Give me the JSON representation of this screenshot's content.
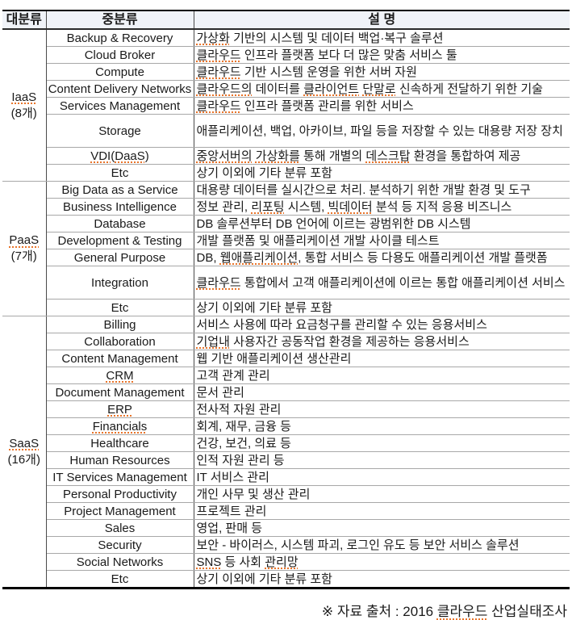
{
  "table": {
    "headers": [
      "대분류",
      "중분류",
      "설 명"
    ],
    "groups": [
      {
        "category": "IaaS",
        "count": "(8개)",
        "category_marks": [
          "IaaS"
        ],
        "rows": [
          {
            "name": "Backup & Recovery",
            "desc": "가상화 기반의 시스템 및 데이터 백업·복구 솔루션",
            "desc_marks": [
              "가상화"
            ]
          },
          {
            "name": "Cloud Broker",
            "desc": "클라우드 인프라 플랫폼 보다 더 많은 맞춤 서비스 툴",
            "desc_marks": [
              "클라우드"
            ]
          },
          {
            "name": "Compute",
            "desc": "클라우드 기반 시스템 운영을 위한 서버 자원",
            "desc_marks": [
              "클라우드"
            ]
          },
          {
            "name": "Content Delivery Networks",
            "desc": "클라우드의 데이터를 클라이언트 단말로 신속하게 전달하기 위한 기술",
            "desc_marks": [
              "클라우드의",
              "클라이언트",
              "단말로"
            ]
          },
          {
            "name": "Services Management",
            "desc": "클라우드 인프라 플랫폼 관리를 위한 서비스",
            "desc_marks": [
              "클라우드"
            ]
          },
          {
            "name": "Storage",
            "desc": "애플리케이션, 백업, 아카이브, 파일 등을 저장할 수 있는 대용량 저장 장치",
            "tall": true
          },
          {
            "name": "VDI(DaaS)",
            "name_marks": [
              "VDI",
              "DaaS"
            ],
            "desc": "중앙서버의 가상화를 통해 개별의 데스크탑 환경을 통합하여 제공",
            "desc_marks": [
              "중앙서버의",
              "가상화를",
              "데스크탑"
            ]
          },
          {
            "name": "Etc",
            "desc": "상기 이외에 기타 분류 포함"
          }
        ]
      },
      {
        "category": "PaaS",
        "count": "(7개)",
        "category_marks": [
          "PaaS"
        ],
        "rows": [
          {
            "name": "Big Data as a Service",
            "desc": "대용량 데이터를 실시간으로 처리. 분석하기 위한 개발 환경 및 도구"
          },
          {
            "name": "Business Intelligence",
            "desc": "정보 관리, 리포팅 시스템, 빅데이터 분석 등 지적 응용 비즈니스",
            "desc_marks": [
              "리포팅",
              "빅데이터"
            ]
          },
          {
            "name": "Database",
            "desc": "DB 솔루션부터 DB 언어에 이르는 광범위한 DB 시스템"
          },
          {
            "name": "Development & Testing",
            "desc": "개발 플랫폼 및 애플리케이션 개발 사이클 테스트"
          },
          {
            "name": "General Purpose",
            "desc": "DB, 웹애플리케이션, 통합 서비스 등 다용도 애플리케이션 개발 플랫폼",
            "desc_marks": [
              "웹애플리케이션"
            ]
          },
          {
            "name": "Integration",
            "desc": "클라우드 통합에서 고객 애플리케이션에 이르는 통합 애플리케이션 서비스",
            "desc_marks": [
              "클라우드"
            ],
            "tall": true
          },
          {
            "name": "Etc",
            "desc": "상기 이외에 기타 분류 포함"
          }
        ]
      },
      {
        "category": "SaaS",
        "count": "(16개)",
        "category_marks": [
          "SaaS"
        ],
        "rows": [
          {
            "name": "Billing",
            "desc": "서비스 사용에 따라 요금청구를 관리할 수 있는 응용서비스"
          },
          {
            "name": "Collaboration",
            "desc": "기업내 사용자간 공동작업 환경을 제공하는 응용서비스",
            "desc_marks": [
              "기업내"
            ]
          },
          {
            "name": "Content Management",
            "desc": "웹 기반 애플리케이션 생산관리"
          },
          {
            "name": "CRM",
            "name_marks": [
              "CRM"
            ],
            "desc": "고객 관계 관리"
          },
          {
            "name": "Document Management",
            "desc": "문서 관리"
          },
          {
            "name": "ERP",
            "name_marks": [
              "ERP"
            ],
            "desc": "전사적 자원 관리"
          },
          {
            "name": "Financials",
            "name_marks": [
              "Financials"
            ],
            "desc": "회계, 재무, 금융 등"
          },
          {
            "name": "Healthcare",
            "desc": "건강, 보건, 의료 등"
          },
          {
            "name": "Human Resources",
            "desc": "인적 자원 관리 등"
          },
          {
            "name": "IT Services Management",
            "desc": "IT 서비스 관리"
          },
          {
            "name": "Personal Productivity",
            "desc": "개인 사무 및 생산 관리"
          },
          {
            "name": "Project Management",
            "desc": "프로젝트 관리"
          },
          {
            "name": "Sales",
            "desc": "영업, 판매 등"
          },
          {
            "name": "Security",
            "desc": "보안 - 바이러스, 시스템 파괴, 로그인 유도 등 보안 서비스 솔루션"
          },
          {
            "name": "Social Networks",
            "desc": "SNS 등 사회 관리망",
            "desc_marks": [
              "SNS",
              "관리망"
            ]
          },
          {
            "name": "Etc",
            "desc": "상기 이외에 기타 분류 포함"
          }
        ]
      }
    ]
  },
  "footer": {
    "source_note": "※ 자료 출처 : 2016 클라우드 산업실태조사",
    "source_marks": [
      "클라우드"
    ]
  },
  "colors": {
    "squiggle": "#e8742a",
    "grid_light": "#a8a8a8",
    "grid_dark": "#4a4a4a",
    "border_heavy": "#000000",
    "header_fill": "#f0f3f8"
  }
}
